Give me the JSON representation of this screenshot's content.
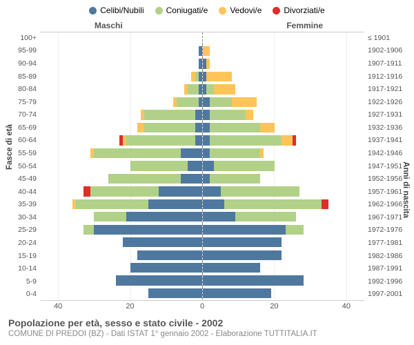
{
  "type": "population-pyramid",
  "legend": [
    {
      "label": "Celibi/Nubili",
      "color": "#4f789f"
    },
    {
      "label": "Coniugati/e",
      "color": "#b2d188"
    },
    {
      "label": "Vedovi/e",
      "color": "#fec457"
    },
    {
      "label": "Divorziati/e",
      "color": "#de2e29"
    }
  ],
  "gender_labels": {
    "left": "Maschi",
    "right": "Femmine"
  },
  "y_axis_left_label": "Fasce di età",
  "y_axis_right_label": "Anni di nascita",
  "age_groups": [
    "100+",
    "95-99",
    "90-94",
    "85-89",
    "80-84",
    "75-79",
    "70-74",
    "65-69",
    "60-64",
    "55-59",
    "50-54",
    "45-49",
    "40-44",
    "35-39",
    "30-34",
    "25-29",
    "20-24",
    "15-19",
    "10-14",
    "5-9",
    "0-4"
  ],
  "birth_years": [
    "≤ 1901",
    "1902-1906",
    "1907-1911",
    "1912-1916",
    "1917-1921",
    "1922-1926",
    "1927-1931",
    "1932-1936",
    "1937-1941",
    "1942-1946",
    "1947-1951",
    "1952-1956",
    "1957-1961",
    "1962-1966",
    "1967-1971",
    "1972-1976",
    "1977-1981",
    "1982-1986",
    "1987-1991",
    "1992-1996",
    "1997-2001"
  ],
  "x_axis": {
    "max": 45,
    "ticks": [
      40,
      20,
      0,
      20,
      40
    ]
  },
  "colors": {
    "celibi": "#4f789f",
    "coniugati": "#b2d188",
    "vedovi": "#fec457",
    "divorziati": "#de2e29",
    "grid": "#eeeeee",
    "center_line": "#888888",
    "background": "#ffffff",
    "text": "#555555"
  },
  "title": "Popolazione per età, sesso e stato civile - 2002",
  "subtitle": "COMUNE DI PREDOI (BZ) - Dati ISTAT 1° gennaio 2002 - Elaborazione TUTTITALIA.IT",
  "fonts": {
    "title_size": 14,
    "subtitle_size": 11.5,
    "legend_size": 12,
    "axis_size": 10.5,
    "label_size": 11.5
  },
  "bar_height_ratio": 0.78,
  "data": {
    "male": [
      {
        "celibi": 0,
        "coniugati": 0,
        "vedovi": 0,
        "divorziati": 0
      },
      {
        "celibi": 1,
        "coniugati": 0,
        "vedovi": 0,
        "divorziati": 0
      },
      {
        "celibi": 1,
        "coniugati": 0,
        "vedovi": 0,
        "divorziati": 0
      },
      {
        "celibi": 1,
        "coniugati": 1,
        "vedovi": 1,
        "divorziati": 0
      },
      {
        "celibi": 1,
        "coniugati": 3,
        "vedovi": 1,
        "divorziati": 0
      },
      {
        "celibi": 1,
        "coniugati": 6,
        "vedovi": 1,
        "divorziati": 0
      },
      {
        "celibi": 2,
        "coniugati": 14,
        "vedovi": 1,
        "divorziati": 0
      },
      {
        "celibi": 2,
        "coniugati": 14,
        "vedovi": 2,
        "divorziati": 0
      },
      {
        "celibi": 2,
        "coniugati": 19,
        "vedovi": 1,
        "divorziati": 1
      },
      {
        "celibi": 6,
        "coniugati": 24,
        "vedovi": 1,
        "divorziati": 0
      },
      {
        "celibi": 4,
        "coniugati": 16,
        "vedovi": 0,
        "divorziati": 0
      },
      {
        "celibi": 6,
        "coniugati": 20,
        "vedovi": 0,
        "divorziati": 0
      },
      {
        "celibi": 12,
        "coniugati": 19,
        "vedovi": 0,
        "divorziati": 2
      },
      {
        "celibi": 15,
        "coniugati": 20,
        "vedovi": 1,
        "divorziati": 0
      },
      {
        "celibi": 21,
        "coniugati": 9,
        "vedovi": 0,
        "divorziati": 0
      },
      {
        "celibi": 30,
        "coniugati": 3,
        "vedovi": 0,
        "divorziati": 0
      },
      {
        "celibi": 22,
        "coniugati": 0,
        "vedovi": 0,
        "divorziati": 0
      },
      {
        "celibi": 18,
        "coniugati": 0,
        "vedovi": 0,
        "divorziati": 0
      },
      {
        "celibi": 20,
        "coniugati": 0,
        "vedovi": 0,
        "divorziati": 0
      },
      {
        "celibi": 24,
        "coniugati": 0,
        "vedovi": 0,
        "divorziati": 0
      },
      {
        "celibi": 15,
        "coniugati": 0,
        "vedovi": 0,
        "divorziati": 0
      }
    ],
    "female": [
      {
        "celibi": 0,
        "coniugati": 0,
        "vedovi": 0,
        "divorziati": 0
      },
      {
        "celibi": 0,
        "coniugati": 0,
        "vedovi": 2,
        "divorziati": 0
      },
      {
        "celibi": 1,
        "coniugati": 0,
        "vedovi": 1,
        "divorziati": 0
      },
      {
        "celibi": 1,
        "coniugati": 0,
        "vedovi": 7,
        "divorziati": 0
      },
      {
        "celibi": 1,
        "coniugati": 2,
        "vedovi": 6,
        "divorziati": 0
      },
      {
        "celibi": 2,
        "coniugati": 6,
        "vedovi": 7,
        "divorziati": 0
      },
      {
        "celibi": 2,
        "coniugati": 10,
        "vedovi": 2,
        "divorziati": 0
      },
      {
        "celibi": 2,
        "coniugati": 14,
        "vedovi": 4,
        "divorziati": 0
      },
      {
        "celibi": 2,
        "coniugati": 20,
        "vedovi": 3,
        "divorziati": 1
      },
      {
        "celibi": 2,
        "coniugati": 14,
        "vedovi": 1,
        "divorziati": 0
      },
      {
        "celibi": 3,
        "coniugati": 17,
        "vedovi": 0,
        "divorziati": 0
      },
      {
        "celibi": 2,
        "coniugati": 14,
        "vedovi": 0,
        "divorziati": 0
      },
      {
        "celibi": 5,
        "coniugati": 22,
        "vedovi": 0,
        "divorziati": 0
      },
      {
        "celibi": 6,
        "coniugati": 27,
        "vedovi": 0,
        "divorziati": 2
      },
      {
        "celibi": 9,
        "coniugati": 17,
        "vedovi": 0,
        "divorziati": 0
      },
      {
        "celibi": 23,
        "coniugati": 5,
        "vedovi": 0,
        "divorziati": 0
      },
      {
        "celibi": 22,
        "coniugati": 0,
        "vedovi": 0,
        "divorziati": 0
      },
      {
        "celibi": 22,
        "coniugati": 0,
        "vedovi": 0,
        "divorziati": 0
      },
      {
        "celibi": 16,
        "coniugati": 0,
        "vedovi": 0,
        "divorziati": 0
      },
      {
        "celibi": 28,
        "coniugati": 0,
        "vedovi": 0,
        "divorziati": 0
      },
      {
        "celibi": 19,
        "coniugati": 0,
        "vedovi": 0,
        "divorziati": 0
      }
    ]
  }
}
